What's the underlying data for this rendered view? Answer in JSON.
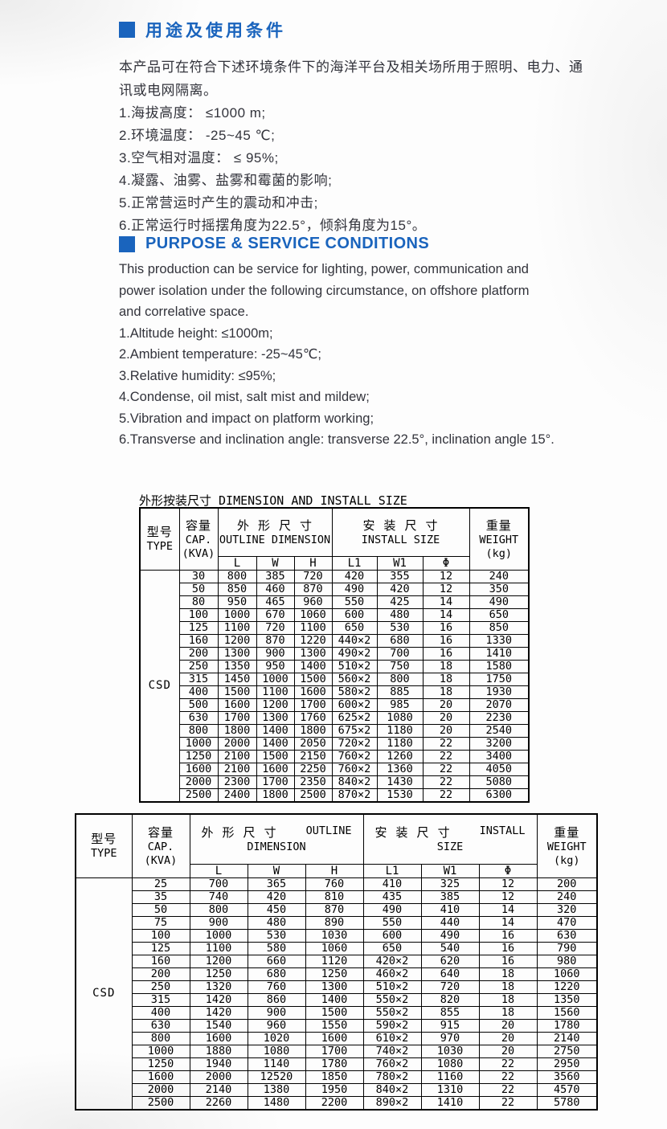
{
  "colors": {
    "accent": "#1a64bd",
    "text": "#32333b",
    "table_ink": "#000000"
  },
  "cn_section": {
    "heading": "用途及使用条件",
    "intro": "本产品可在符合下述环境条件下的海洋平台及相关场所用于照明、电力、通讯或电网隔离。",
    "items": [
      "1.海拔高度： ≤1000 m;",
      "2.环境温度： -25~45 ℃;",
      "3.空气相对温度： ≤ 95%;",
      "4.凝露、油雾、盐雾和霉菌的影响;",
      "5.正常营运时产生的震动和冲击;",
      "6.正常运行时摇摆角度为22.5°，倾斜角度为15°。"
    ]
  },
  "en_section": {
    "heading": "PURPOSE & SERVICE CONDITIONS",
    "intro": "This production can be service for lighting, power, communication and power isolation under the following circumstance, on offshore platform and correlative space.",
    "items": [
      "1.Altitude height: ≤1000m;",
      "2.Ambient temperature: -25~45℃;",
      "3.Relative humidity: ≤95%;",
      "4.Condense, oil mist, salt mist and mildew;",
      "5.Vibration and impact on platform working;",
      "6.Transverse and inclination angle: transverse 22.5°, inclination angle 15°."
    ]
  },
  "table1": {
    "title": "外形按装尺寸 DIMENSION AND INSTALL SIZE",
    "headers": {
      "type_cn": "型号",
      "type_en": "TYPE",
      "cap_cn": "容量",
      "cap_en": "CAP.",
      "cap_unit": "(KVA)",
      "outline_cn": "外 形 尺 寸",
      "outline_en": "OUTLINE DIMENSION",
      "install_cn": "安 装 尺 寸",
      "install_en": "INSTALL SIZE",
      "weight_cn": "重量",
      "weight_en": "WEIGHT",
      "weight_unit": "(kg)",
      "sub": [
        "L",
        "W",
        "H",
        "L1",
        "W1",
        "Φ"
      ]
    },
    "type_label": "CSD",
    "rows": [
      [
        "30",
        "800",
        "385",
        "720",
        "420",
        "355",
        "12",
        "240"
      ],
      [
        "50",
        "850",
        "460",
        "870",
        "490",
        "420",
        "12",
        "350"
      ],
      [
        "80",
        "950",
        "465",
        "960",
        "550",
        "425",
        "14",
        "490"
      ],
      [
        "100",
        "1000",
        "670",
        "1060",
        "600",
        "480",
        "14",
        "650"
      ],
      [
        "125",
        "1100",
        "720",
        "1100",
        "650",
        "530",
        "16",
        "850"
      ],
      [
        "160",
        "1200",
        "870",
        "1220",
        "440×2",
        "680",
        "16",
        "1330"
      ],
      [
        "200",
        "1300",
        "900",
        "1300",
        "490×2",
        "700",
        "16",
        "1410"
      ],
      [
        "250",
        "1350",
        "950",
        "1400",
        "510×2",
        "750",
        "18",
        "1580"
      ],
      [
        "315",
        "1450",
        "1000",
        "1500",
        "560×2",
        "800",
        "18",
        "1750"
      ],
      [
        "400",
        "1500",
        "1100",
        "1600",
        "580×2",
        "885",
        "18",
        "1930"
      ],
      [
        "500",
        "1600",
        "1200",
        "1700",
        "600×2",
        "985",
        "20",
        "2070"
      ],
      [
        "630",
        "1700",
        "1300",
        "1760",
        "625×2",
        "1080",
        "20",
        "2230"
      ],
      [
        "800",
        "1800",
        "1400",
        "1800",
        "675×2",
        "1180",
        "20",
        "2540"
      ],
      [
        "1000",
        "2000",
        "1400",
        "2050",
        "720×2",
        "1180",
        "22",
        "3200"
      ],
      [
        "1250",
        "2100",
        "1500",
        "2150",
        "760×2",
        "1260",
        "22",
        "3400"
      ],
      [
        "1600",
        "2100",
        "1600",
        "2250",
        "760×2",
        "1360",
        "22",
        "4050"
      ],
      [
        "2000",
        "2300",
        "1700",
        "2350",
        "840×2",
        "1430",
        "22",
        "5080"
      ],
      [
        "2500",
        "2400",
        "1800",
        "2500",
        "870×2",
        "1530",
        "22",
        "6300"
      ]
    ]
  },
  "table2": {
    "headers": {
      "type_cn": "型号",
      "type_en": "TYPE",
      "cap_cn": "容量",
      "cap_en": "CAP.",
      "cap_unit": "(KVA)",
      "outline_cn": "外 形 尺 寸",
      "outline_en1": "OUTLINE",
      "outline_en2": "DIMENSION",
      "install_cn": "安 装 尺 寸",
      "install_en1": "INSTALL",
      "install_en2": "SIZE",
      "weight_cn": "重量",
      "weight_en": "WEIGHT",
      "weight_unit": "(kg)",
      "sub": [
        "L",
        "W",
        "H",
        "L1",
        "W1",
        "Φ"
      ]
    },
    "type_label": "CSD",
    "rows": [
      [
        "25",
        "700",
        "365",
        "760",
        "410",
        "325",
        "12",
        "200"
      ],
      [
        "35",
        "740",
        "420",
        "810",
        "435",
        "385",
        "12",
        "240"
      ],
      [
        "50",
        "800",
        "450",
        "870",
        "490",
        "410",
        "14",
        "320"
      ],
      [
        "75",
        "900",
        "480",
        "890",
        "550",
        "440",
        "14",
        "470"
      ],
      [
        "100",
        "1000",
        "530",
        "1030",
        "600",
        "490",
        "16",
        "630"
      ],
      [
        "125",
        "1100",
        "580",
        "1060",
        "650",
        "540",
        "16",
        "790"
      ],
      [
        "160",
        "1200",
        "660",
        "1120",
        "420×2",
        "620",
        "16",
        "980"
      ],
      [
        "200",
        "1250",
        "680",
        "1250",
        "460×2",
        "640",
        "18",
        "1060"
      ],
      [
        "250",
        "1320",
        "760",
        "1300",
        "510×2",
        "720",
        "18",
        "1220"
      ],
      [
        "315",
        "1420",
        "860",
        "1400",
        "550×2",
        "820",
        "18",
        "1350"
      ],
      [
        "400",
        "1420",
        "900",
        "1500",
        "550×2",
        "855",
        "18",
        "1560"
      ],
      [
        "630",
        "1540",
        "960",
        "1550",
        "590×2",
        "915",
        "20",
        "1780"
      ],
      [
        "800",
        "1600",
        "1020",
        "1600",
        "610×2",
        "970",
        "20",
        "2140"
      ],
      [
        "1000",
        "1880",
        "1080",
        "1700",
        "740×2",
        "1030",
        "20",
        "2750"
      ],
      [
        "1250",
        "1940",
        "1140",
        "1780",
        "760×2",
        "1080",
        "22",
        "2950"
      ],
      [
        "1600",
        "2000",
        "12520",
        "1850",
        "780×2",
        "1160",
        "22",
        "3560"
      ],
      [
        "2000",
        "2140",
        "1380",
        "1950",
        "840×2",
        "1310",
        "22",
        "4570"
      ],
      [
        "2500",
        "2260",
        "1480",
        "2200",
        "890×2",
        "1410",
        "22",
        "5780"
      ]
    ]
  }
}
